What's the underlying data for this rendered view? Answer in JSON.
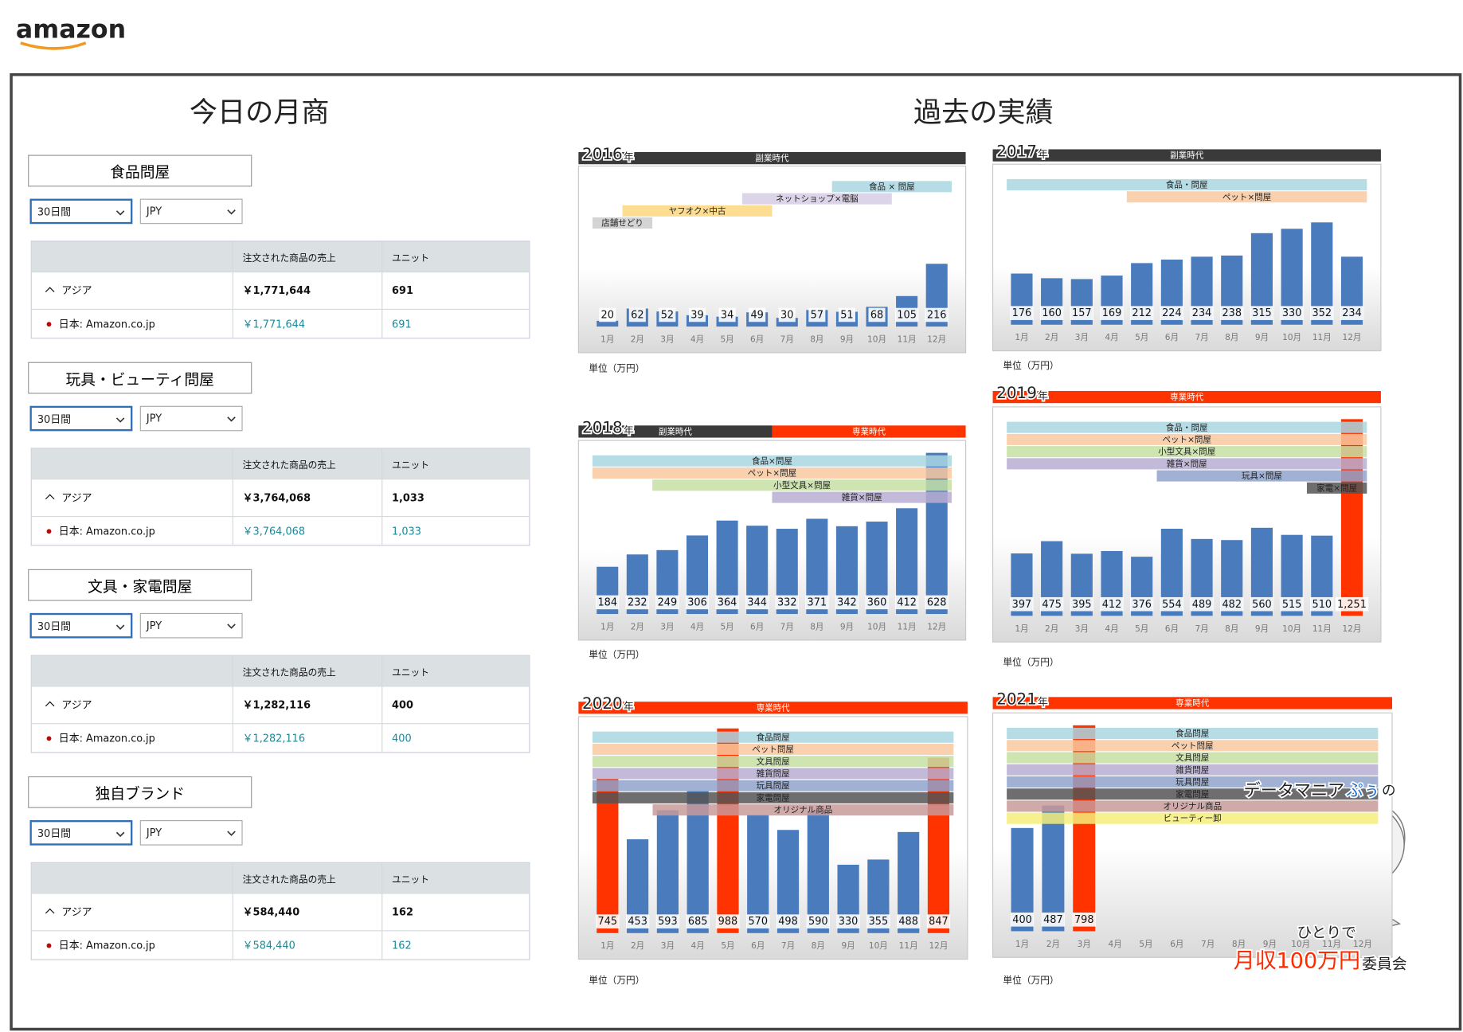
{
  "header": {
    "logo": "amazon"
  },
  "today": {
    "title": "今日の月商",
    "sections": [
      {
        "name": "食品問屋",
        "period": "30日間",
        "currency": "JPY",
        "columns": [
          "注文された商品の売上",
          "ユニット"
        ],
        "rows": [
          [
            "アジア",
            "￥1,771,644",
            "691"
          ],
          [
            "日本: Amazon.co.jp",
            "￥1,771,644",
            "691"
          ]
        ]
      },
      {
        "name": "玩具・ビューティ問屋",
        "period": "30日間",
        "currency": "JPY",
        "columns": [
          "注文された商品の売上",
          "ユニット"
        ],
        "rows": [
          [
            "アジア",
            "￥3,764,068",
            "1,033"
          ],
          [
            "日本: Amazon.co.jp",
            "￥3,764,068",
            "1,033"
          ]
        ]
      },
      {
        "name": "文具・家電問屋",
        "period": "30日間",
        "currency": "JPY",
        "columns": [
          "注文された商品の売上",
          "ユニット"
        ],
        "rows": [
          [
            "アジア",
            "￥1,282,116",
            "400"
          ],
          [
            "日本: Amazon.co.jp",
            "￥1,282,116",
            "400"
          ]
        ]
      },
      {
        "name": "独自ブランド",
        "period": "30日間",
        "currency": "JPY",
        "columns": [
          "注文された商品の売上",
          "ユニット"
        ],
        "rows": [
          [
            "アジア",
            "￥584,440",
            "162"
          ],
          [
            "日本: Amazon.co.jp",
            "￥584,440",
            "162"
          ]
        ]
      }
    ]
  },
  "history": {
    "title": "過去の実績"
  },
  "chart_data": [
    {
      "type": "bar",
      "year": "2016",
      "year_suffix": "年",
      "unit": "単位（万円）",
      "eras": [
        {
          "label": "副業時代",
          "color": "#3a3a3a",
          "span": [
            "1月",
            "12月"
          ]
        }
      ],
      "categories": [
        "1月",
        "2月",
        "3月",
        "4月",
        "5月",
        "6月",
        "7月",
        "8月",
        "9月",
        "10月",
        "11月",
        "12月"
      ],
      "values": [
        20,
        62,
        52,
        39,
        34,
        49,
        30,
        57,
        51,
        68,
        105,
        216
      ],
      "colors": [
        "#4a7bbd",
        "#4a7bbd",
        "#4a7bbd",
        "#4a7bbd",
        "#4a7bbd",
        "#4a7bbd",
        "#4a7bbd",
        "#4a7bbd",
        "#4a7bbd",
        "#4a7bbd",
        "#4a7bbd",
        "#4a7bbd"
      ],
      "ylim": [
        0,
        520
      ],
      "bands": [
        {
          "label": "食品 × 問屋",
          "color": "#a9d6e2",
          "span": [
            "9月",
            "12月"
          ]
        },
        {
          "label": "ネットショップ×電脳",
          "color": "#d6cce4",
          "span": [
            "6月",
            "10月"
          ]
        },
        {
          "label": "ヤフオク×中古",
          "color": "#fbd77e",
          "span": [
            "2月",
            "6月"
          ]
        },
        {
          "label": "店舗せどり",
          "color": "#cccccc",
          "span": [
            "1月",
            "2月"
          ]
        }
      ]
    },
    {
      "type": "bar",
      "year": "2017",
      "year_suffix": "年",
      "unit": "単位（万円）",
      "eras": [
        {
          "label": "副業時代",
          "color": "#3a3a3a",
          "span": [
            "1月",
            "12月"
          ]
        }
      ],
      "categories": [
        "1月",
        "2月",
        "3月",
        "4月",
        "5月",
        "6月",
        "7月",
        "8月",
        "9月",
        "10月",
        "11月",
        "12月"
      ],
      "values": [
        176,
        160,
        157,
        169,
        212,
        224,
        234,
        238,
        315,
        330,
        352,
        234
      ],
      "colors": [
        "#4a7bbd",
        "#4a7bbd",
        "#4a7bbd",
        "#4a7bbd",
        "#4a7bbd",
        "#4a7bbd",
        "#4a7bbd",
        "#4a7bbd",
        "#4a7bbd",
        "#4a7bbd",
        "#4a7bbd",
        "#4a7bbd"
      ],
      "ylim": [
        0,
        520
      ],
      "bands": [
        {
          "label": "食品・問屋",
          "color": "#a9d6e2",
          "span": [
            "1月",
            "12月"
          ]
        },
        {
          "label": "ペット×問屋",
          "color": "#f8c9a0",
          "span": [
            "5月",
            "12月"
          ]
        }
      ]
    },
    {
      "type": "bar",
      "year": "2018",
      "year_suffix": "年",
      "unit": "単位（万円）",
      "eras": [
        {
          "label": "副業時代",
          "color": "#3a3a3a",
          "span": [
            "1月",
            "6月"
          ]
        },
        {
          "label": "専業時代",
          "color": "#ff3300",
          "span": [
            "7月",
            "12月"
          ]
        }
      ],
      "categories": [
        "1月",
        "2月",
        "3月",
        "4月",
        "5月",
        "6月",
        "7月",
        "8月",
        "9月",
        "10月",
        "11月",
        "12月"
      ],
      "values": [
        184,
        232,
        249,
        306,
        364,
        344,
        332,
        371,
        342,
        360,
        412,
        628
      ],
      "colors": [
        "#4a7bbd",
        "#4a7bbd",
        "#4a7bbd",
        "#4a7bbd",
        "#4a7bbd",
        "#4a7bbd",
        "#4a7bbd",
        "#4a7bbd",
        "#4a7bbd",
        "#4a7bbd",
        "#4a7bbd",
        "#4a7bbd"
      ],
      "ylim": [
        0,
        640
      ],
      "bands": [
        {
          "label": "食品×問屋",
          "color": "#a9d6e2",
          "span": [
            "1月",
            "12月"
          ]
        },
        {
          "label": "ペット×問屋",
          "color": "#f8c9a0",
          "span": [
            "1月",
            "12月"
          ]
        },
        {
          "label": "小型文具×問屋",
          "color": "#c5e1a5",
          "span": [
            "3月",
            "12月"
          ]
        },
        {
          "label": "雑貨×問屋",
          "color": "#b8aed2",
          "span": [
            "7月",
            "12月"
          ]
        }
      ]
    },
    {
      "type": "bar",
      "year": "2019",
      "year_suffix": "年",
      "unit": "単位（万円）",
      "eras": [
        {
          "label": "専業時代",
          "color": "#ff3300",
          "span": [
            "1月",
            "12月"
          ]
        }
      ],
      "categories": [
        "1月",
        "2月",
        "3月",
        "4月",
        "5月",
        "6月",
        "7月",
        "8月",
        "9月",
        "10月",
        "11月",
        "12月"
      ],
      "values": [
        397,
        475,
        395,
        412,
        376,
        554,
        489,
        482,
        560,
        515,
        510,
        1251
      ],
      "value_labels": [
        "397",
        "475",
        "395",
        "412",
        "376",
        "554",
        "489",
        "482",
        "560",
        "515",
        "510",
        "1,251"
      ],
      "colors": [
        "#4a7bbd",
        "#4a7bbd",
        "#4a7bbd",
        "#4a7bbd",
        "#4a7bbd",
        "#4a7bbd",
        "#4a7bbd",
        "#4a7bbd",
        "#4a7bbd",
        "#4a7bbd",
        "#4a7bbd",
        "#ff3300"
      ],
      "ylim": [
        0,
        1270
      ],
      "bands": [
        {
          "label": "食品・問屋",
          "color": "#a9d6e2",
          "span": [
            "1月",
            "12月"
          ]
        },
        {
          "label": "ペット×問屋",
          "color": "#f8c9a0",
          "span": [
            "1月",
            "12月"
          ]
        },
        {
          "label": "小型文具×問屋",
          "color": "#c5e1a5",
          "span": [
            "1月",
            "12月"
          ]
        },
        {
          "label": "雑貨×問屋",
          "color": "#b8aed2",
          "span": [
            "1月",
            "12月"
          ]
        },
        {
          "label": "玩具×問屋",
          "color": "#8fa3cc",
          "span": [
            "6月",
            "12月"
          ]
        },
        {
          "label": "家電×問屋",
          "color": "#555555",
          "span": [
            "11月",
            "12月"
          ]
        }
      ]
    },
    {
      "type": "bar",
      "year": "2020",
      "year_suffix": "年",
      "unit": "単位（万円）",
      "eras": [
        {
          "label": "専業時代",
          "color": "#ff3300",
          "span": [
            "1月",
            "12月"
          ]
        }
      ],
      "categories": [
        "1月",
        "2月",
        "3月",
        "4月",
        "5月",
        "6月",
        "7月",
        "8月",
        "9月",
        "10月",
        "11月",
        "12月"
      ],
      "values": [
        745,
        453,
        593,
        685,
        988,
        570,
        498,
        590,
        330,
        355,
        488,
        847
      ],
      "colors": [
        "#ff3300",
        "#4a7bbd",
        "#4a7bbd",
        "#4a7bbd",
        "#ff3300",
        "#4a7bbd",
        "#4a7bbd",
        "#4a7bbd",
        "#4a7bbd",
        "#4a7bbd",
        "#4a7bbd",
        "#ff3300"
      ],
      "ylim": [
        0,
        1000
      ],
      "bands": [
        {
          "label": "食品問屋",
          "color": "#a9d6e2",
          "span": [
            "1月",
            "12月"
          ]
        },
        {
          "label": "ペット問屋",
          "color": "#f8c9a0",
          "span": [
            "1月",
            "12月"
          ]
        },
        {
          "label": "文具問屋",
          "color": "#c5e1a5",
          "span": [
            "1月",
            "12月"
          ]
        },
        {
          "label": "雑貨問屋",
          "color": "#b8aed2",
          "span": [
            "1月",
            "12月"
          ]
        },
        {
          "label": "玩具問屋",
          "color": "#8fa3cc",
          "span": [
            "1月",
            "12月"
          ]
        },
        {
          "label": "家電問屋",
          "color": "#555555",
          "span": [
            "1月",
            "12月"
          ]
        },
        {
          "label": "オリジナル商品",
          "color": "#c89a9a",
          "span": [
            "3月",
            "12月"
          ]
        }
      ]
    },
    {
      "type": "bar",
      "year": "2021",
      "year_suffix": "年",
      "unit": "単位（万円）",
      "eras": [
        {
          "label": "専業時代",
          "color": "#ff3300",
          "span": [
            "1月",
            "12月"
          ]
        }
      ],
      "categories": [
        "1月",
        "2月",
        "3月",
        "4月",
        "5月",
        "6月",
        "7月",
        "8月",
        "9月",
        "10月",
        "11月",
        "12月"
      ],
      "values": [
        400,
        487,
        798,
        null,
        null,
        null,
        null,
        null,
        null,
        null,
        null,
        null
      ],
      "colors": [
        "#4a7bbd",
        "#4a7bbd",
        "#ff3300",
        "#4a7bbd",
        "#4a7bbd",
        "#4a7bbd",
        "#4a7bbd",
        "#4a7bbd",
        "#4a7bbd",
        "#4a7bbd",
        "#4a7bbd",
        "#4a7bbd"
      ],
      "ylim": [
        0,
        810
      ],
      "bands": [
        {
          "label": "食品問屋",
          "color": "#a9d6e2",
          "span": [
            "1月",
            "12月"
          ]
        },
        {
          "label": "ペット問屋",
          "color": "#f8c9a0",
          "span": [
            "1月",
            "12月"
          ]
        },
        {
          "label": "文具問屋",
          "color": "#c5e1a5",
          "span": [
            "1月",
            "12月"
          ]
        },
        {
          "label": "雑貨問屋",
          "color": "#b8aed2",
          "span": [
            "1月",
            "12月"
          ]
        },
        {
          "label": "玩具問屋",
          "color": "#8fa3cc",
          "span": [
            "1月",
            "12月"
          ]
        },
        {
          "label": "家電問屋",
          "color": "#555555",
          "span": [
            "1月",
            "12月"
          ]
        },
        {
          "label": "オリジナル商品",
          "color": "#c89a9a",
          "span": [
            "1月",
            "12月"
          ]
        },
        {
          "label": "ビューティー卸",
          "color": "#f5ef7a",
          "span": [
            "1月",
            "12月"
          ]
        }
      ]
    }
  ],
  "brand": {
    "line1": [
      "データマニア",
      "ぷぅ",
      "の"
    ],
    "line2": "ひとりで",
    "line3": [
      "月収100万円",
      "委員会"
    ]
  }
}
